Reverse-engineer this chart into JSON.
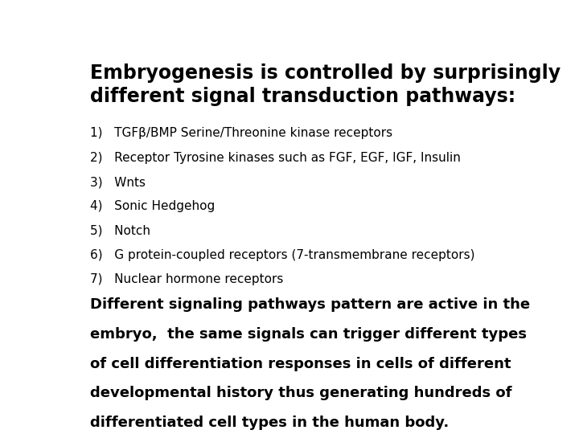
{
  "background_color": "#ffffff",
  "title_line1": "Embryogenesis is controlled by surprisingly",
  "title_line2": "different signal transduction pathways:",
  "title_fontsize": 17,
  "title_bold": true,
  "list_items": [
    "1)   TGFβ/BMP Serine/Threonine kinase receptors",
    "2)   Receptor Tyrosine kinases such as FGF, EGF, IGF, Insulin",
    "3)   Wnts",
    "4)   Sonic Hedgehog",
    "5)   Notch",
    "6)   G protein-coupled receptors (7-transmembrane receptors)",
    "7)   Nuclear hormone receptors"
  ],
  "list_fontsize": 11,
  "list_bold": false,
  "paragraph_lines": [
    "Different signaling pathways pattern are active in the",
    "embryo,  the same signals can trigger different types",
    "of cell differentiation responses in cells of different",
    "developmental history thus generating hundreds of",
    "differentiated cell types in the human body."
  ],
  "paragraph_fontsize": 13,
  "paragraph_bold": true,
  "text_color": "#000000",
  "fig_width": 7.2,
  "fig_height": 5.4,
  "dpi": 100
}
